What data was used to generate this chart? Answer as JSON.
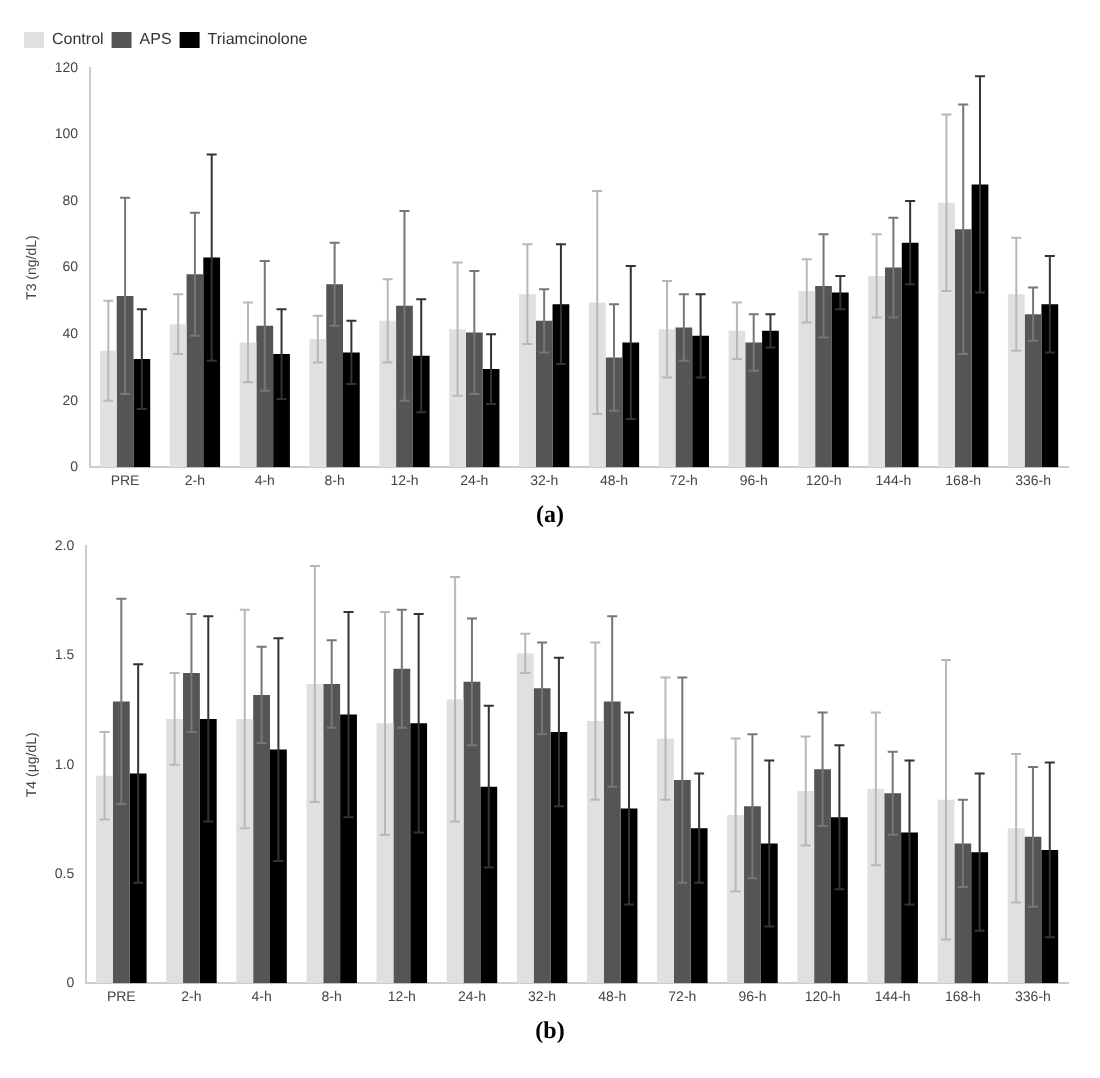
{
  "chart_data": [
    {
      "type": "bar",
      "ylabel": "T3 (ng/dL)",
      "annotations": [
        "(a)"
      ],
      "legend": "top left",
      "grid": false,
      "categories": [
        "PRE",
        "2-h",
        "4-h",
        "8-h",
        "12-h",
        "24-h",
        "32-h",
        "48-h",
        "72-h",
        "96-h",
        "120-h",
        "144-h",
        "168-h",
        "336-h"
      ],
      "ylim": [
        0,
        120
      ],
      "yticks": [
        0,
        20,
        40,
        60,
        80,
        100,
        120
      ],
      "series": [
        {
          "name": "Control",
          "color": "#e0e0e0",
          "values": [
            35,
            43,
            37.5,
            38.5,
            44,
            41.5,
            52,
            49.5,
            41.5,
            41,
            53,
            57.5,
            79.5,
            52
          ],
          "errors": [
            15,
            9,
            12,
            7,
            12.5,
            20,
            15,
            33.5,
            14.5,
            8.5,
            9.5,
            12.5,
            26.5,
            17
          ]
        },
        {
          "name": "APS",
          "color": "#555555",
          "values": [
            51.5,
            58,
            42.5,
            55,
            48.5,
            40.5,
            44,
            33,
            42,
            37.5,
            54.5,
            60,
            71.5,
            46
          ],
          "errors": [
            29.5,
            18.5,
            19.5,
            12.5,
            28.5,
            18.5,
            9.5,
            16,
            10,
            8.5,
            15.5,
            15,
            37.5,
            8
          ]
        },
        {
          "name": "Triamcinolone",
          "color": "#000000",
          "values": [
            32.5,
            63,
            34,
            34.5,
            33.5,
            29.5,
            49,
            37.5,
            39.5,
            41,
            52.5,
            67.5,
            85,
            49
          ],
          "errors": [
            15,
            31,
            13.5,
            9.5,
            17,
            10.5,
            18,
            23,
            12.5,
            5,
            5,
            12.5,
            32.5,
            14.5
          ]
        }
      ]
    },
    {
      "type": "bar",
      "ylabel": "T4 (μg/dL)",
      "annotations": [
        "(b)"
      ],
      "grid": false,
      "categories": [
        "PRE",
        "2-h",
        "4-h",
        "8-h",
        "12-h",
        "24-h",
        "32-h",
        "48-h",
        "72-h",
        "96-h",
        "120-h",
        "144-h",
        "168-h",
        "336-h"
      ],
      "ylim": [
        0,
        2
      ],
      "yticks": [
        0,
        0.5,
        {
          "value": 1,
          "label": "1.0"
        },
        1.5,
        {
          "value": 2,
          "label": "2.0"
        }
      ],
      "series": [
        {
          "color": "#e0e0e0",
          "values": [
            0.95,
            1.21,
            1.21,
            1.37,
            1.19,
            1.3,
            1.51,
            1.2,
            1.12,
            0.77,
            0.88,
            0.89,
            0.84,
            0.71
          ],
          "errors": [
            0.2,
            0.21,
            0.5,
            0.54,
            0.51,
            0.56,
            0.09,
            0.36,
            0.28,
            0.35,
            0.25,
            0.35,
            0.64,
            0.34
          ]
        },
        {
          "color": "#555555",
          "values": [
            1.29,
            1.42,
            1.32,
            1.37,
            1.44,
            1.38,
            1.35,
            1.29,
            0.93,
            0.81,
            0.98,
            0.87,
            0.64,
            0.67
          ],
          "errors": [
            0.47,
            0.27,
            0.22,
            0.2,
            0.27,
            0.29,
            0.21,
            0.39,
            0.47,
            0.33,
            0.26,
            0.19,
            0.2,
            0.32
          ]
        },
        {
          "color": "#000000",
          "values": [
            0.96,
            1.21,
            1.07,
            1.23,
            1.19,
            0.9,
            1.15,
            0.8,
            0.71,
            0.64,
            0.76,
            0.69,
            0.6,
            0.61
          ],
          "errors": [
            0.5,
            0.47,
            0.51,
            0.47,
            0.5,
            0.37,
            0.34,
            0.44,
            0.25,
            0.38,
            0.33,
            0.33,
            0.36,
            0.4
          ]
        }
      ]
    }
  ]
}
